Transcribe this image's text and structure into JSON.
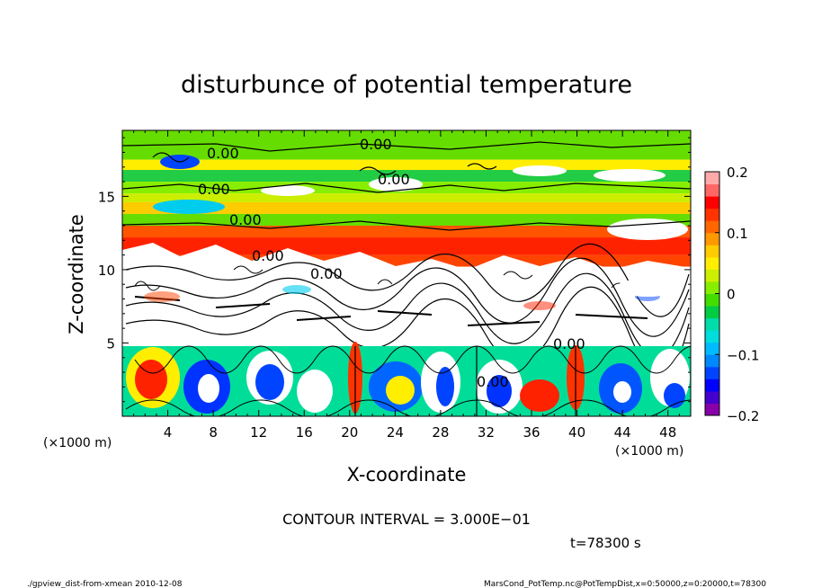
{
  "chart_data": {
    "type": "heatmap",
    "title": "disturbunce of potential temperature",
    "xlabel": "X-coordinate",
    "ylabel": "Z-coordinate",
    "x_unit_left": "(×1000 m)",
    "x_unit_right": "(×1000 m)",
    "xlim": [
      0,
      50
    ],
    "ylim": [
      0,
      19.5
    ],
    "x_ticks": [
      4,
      8,
      12,
      16,
      20,
      24,
      28,
      32,
      36,
      40,
      44,
      48
    ],
    "y_ticks": [
      5,
      10,
      15
    ],
    "colorbar": {
      "range": [
        -0.2,
        0.2
      ],
      "ticks": [
        {
          "value": 0.2,
          "label": "0.2"
        },
        {
          "value": 0.1,
          "label": "0.1"
        },
        {
          "value": 0,
          "label": "0"
        },
        {
          "value": -0.1,
          "label": "−0.1"
        },
        {
          "value": -0.2,
          "label": "−0.2"
        }
      ],
      "colors": [
        "#8800aa",
        "#4400cc",
        "#0000ff",
        "#0044ff",
        "#0088ff",
        "#00bbff",
        "#00dddd",
        "#00ddaa",
        "#00cc44",
        "#44dd00",
        "#88ee00",
        "#ccee00",
        "#ffee00",
        "#ffcc00",
        "#ff9900",
        "#ff6600",
        "#ff3300",
        "#ff0000",
        "#ff6666",
        "#ffaaaa"
      ]
    },
    "contour_labels": [
      "0.00",
      "0.00",
      "0.00",
      "0.00",
      "0.00",
      "0.00",
      "0.00",
      "0.00",
      "0.00"
    ],
    "contour_interval_text": "CONTOUR INTERVAL = 3.000E−01",
    "time_text": "t=78300 s"
  },
  "footer": {
    "left": "./gpview_dist-from-xmean  2010-12-08",
    "right": "MarsCond_PotTemp.nc@PotTempDist,x=0:50000,z=0:20000,t=78300"
  }
}
